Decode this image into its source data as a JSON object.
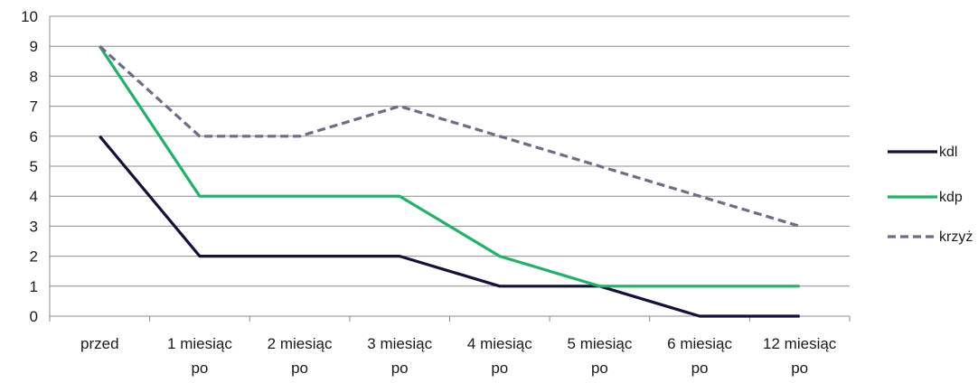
{
  "chart_data": {
    "type": "line",
    "categories": [
      [
        "przed"
      ],
      [
        "1 miesiąc",
        "po"
      ],
      [
        "2 miesiąc",
        "po"
      ],
      [
        "3 miesiąc",
        "po"
      ],
      [
        "4 miesiąc",
        "po"
      ],
      [
        "5 miesiąc",
        "po"
      ],
      [
        "6 miesiąc",
        "po"
      ],
      [
        "12 miesiąc",
        "po"
      ]
    ],
    "series": [
      {
        "name": "kdl",
        "values": [
          6,
          2,
          2,
          2,
          1,
          1,
          0,
          0
        ],
        "color": "#13123a",
        "dash": "solid"
      },
      {
        "name": "kdp",
        "values": [
          9,
          4,
          4,
          4,
          2,
          1,
          1,
          1
        ],
        "color": "#1fb36a",
        "dash": "solid"
      },
      {
        "name": "krzyż",
        "values": [
          9,
          6,
          6,
          7,
          6,
          5,
          4,
          3
        ],
        "color": "#6e6c86",
        "dash": "dashed"
      }
    ],
    "yticks": [
      "0",
      "1",
      "2",
      "3",
      "4",
      "5",
      "6",
      "7",
      "8",
      "9",
      "10"
    ],
    "ylim": [
      0,
      10
    ],
    "grid": true,
    "legend": "right"
  }
}
